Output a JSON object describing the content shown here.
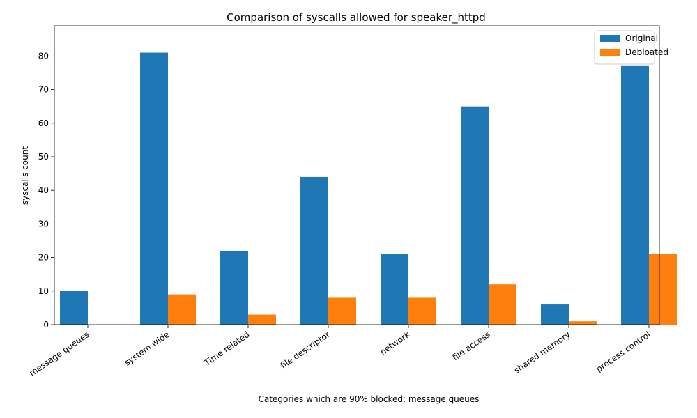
{
  "chart_data": {
    "type": "bar",
    "title": "Comparison of syscalls allowed for speaker_httpd",
    "xlabel": "Categories which are 90% blocked: message queues",
    "ylabel": "syscalls count",
    "categories": [
      "message queues",
      "system wide",
      "Time related",
      "file descriptor",
      "network",
      "file access",
      "shared memory",
      "process control"
    ],
    "series": [
      {
        "name": "Original",
        "color": "#1f77b4",
        "values": [
          10,
          81,
          22,
          44,
          21,
          65,
          6,
          77
        ]
      },
      {
        "name": "Debloated",
        "color": "#ff7f0e",
        "values": [
          0,
          9,
          3,
          8,
          8,
          12,
          1,
          21
        ]
      }
    ],
    "ylim": [
      0,
      89
    ],
    "yticks": [
      0,
      10,
      20,
      30,
      40,
      50,
      60,
      70,
      80
    ],
    "grid": false,
    "legend": "top-right"
  }
}
